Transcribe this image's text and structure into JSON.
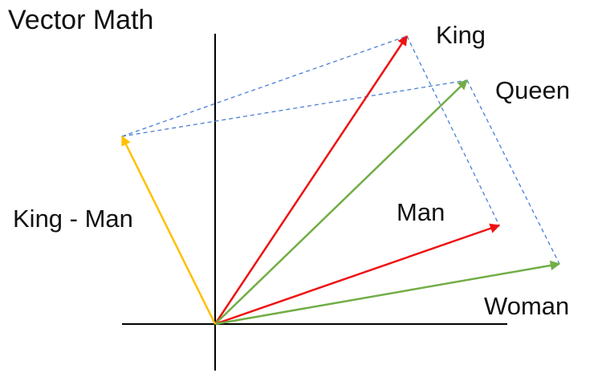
{
  "diagram": {
    "title": "Vector Math",
    "labels": {
      "king": "King",
      "queen": "Queen",
      "man": "Man",
      "woman": "Woman",
      "king_minus_man": "King - Man"
    },
    "colors": {
      "king_man": "#ee1111",
      "queen_woman": "#72ad47",
      "king_minus_man": "#ffc000",
      "construction": "#4a7fd6",
      "axes": "#000000"
    }
  }
}
